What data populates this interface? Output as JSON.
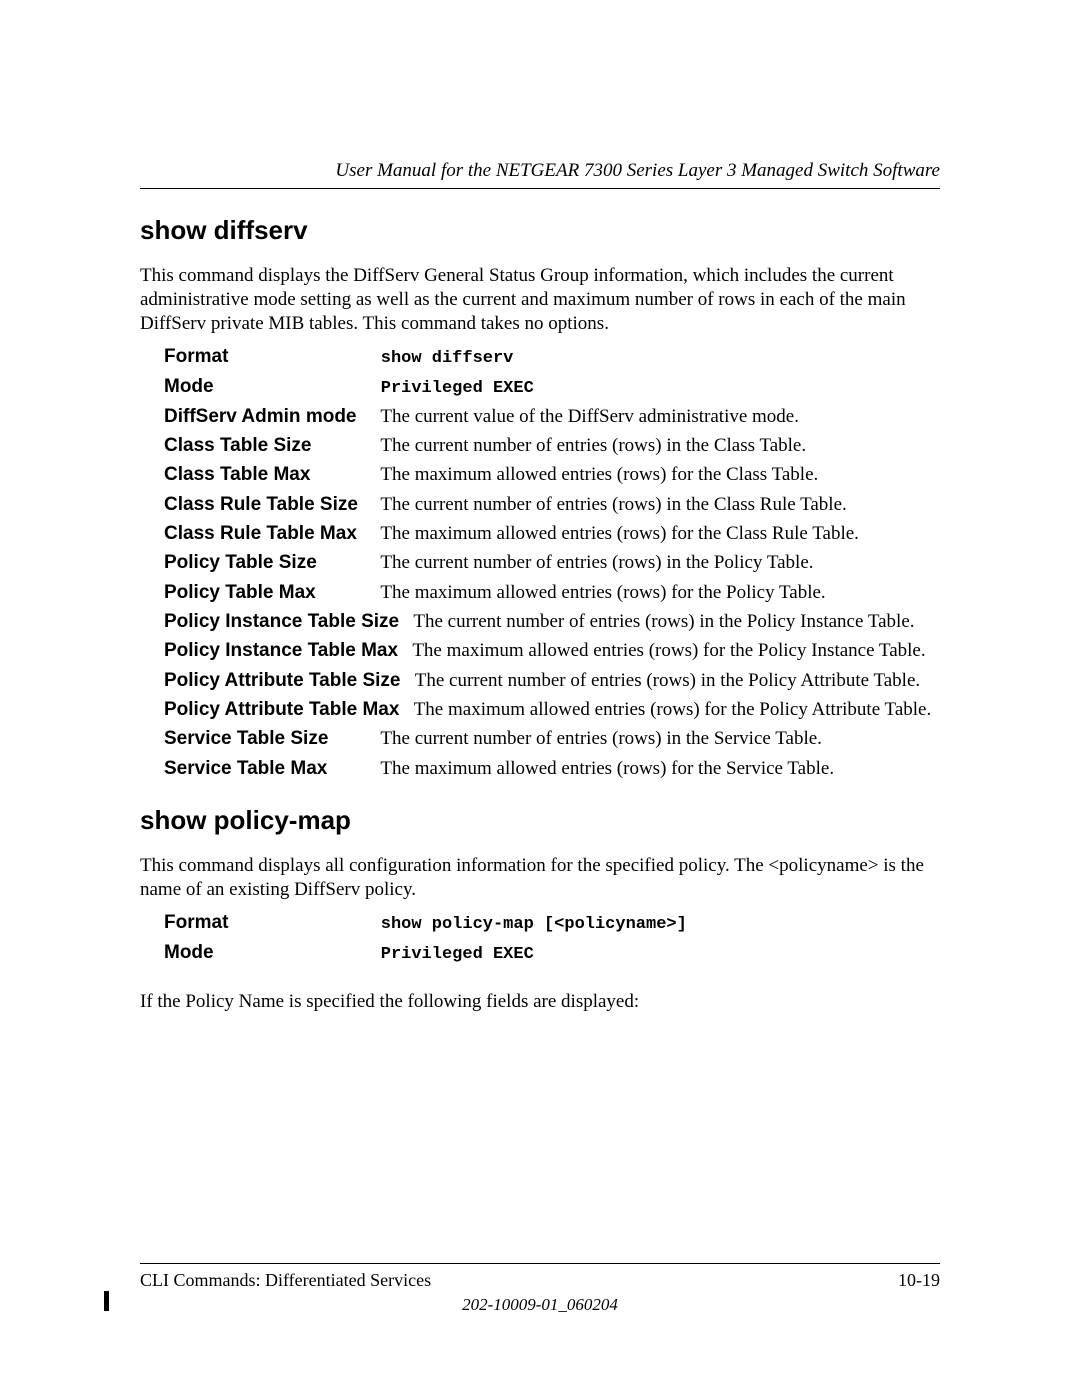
{
  "header": {
    "running_title": "User Manual for the NETGEAR 7300 Series Layer 3 Managed Switch Software"
  },
  "sections": {
    "show_diffserv": {
      "heading": "show diffserv",
      "intro": "This command displays the DiffServ General Status Group information, which includes the current administrative mode setting as well as the current and maximum number of rows in each of the main DiffServ private MIB tables. This command takes no options.",
      "rows": {
        "format_label": "Format",
        "format_value": "show diffserv",
        "mode_label": "Mode",
        "mode_value": "Privileged EXEC",
        "admin_label": "DiffServ Admin mode",
        "admin_desc": "The current value of the DiffServ administrative mode.",
        "class_size_label": "Class Table Size",
        "class_size_desc": "The current number of entries (rows) in the Class Table.",
        "class_max_label": "Class Table Max",
        "class_max_desc": "The maximum allowed entries (rows) for the Class Table.",
        "crule_size_label": "Class Rule Table Size",
        "crule_size_desc": "The current number of entries (rows) in the Class Rule Table.",
        "crule_max_label": "Class Rule Table Max",
        "crule_max_desc": "The maximum allowed entries (rows) for the Class Rule Table.",
        "policy_size_label": "Policy Table Size",
        "policy_size_desc": "The current number of entries (rows) in the Policy Table.",
        "policy_max_label": "Policy Table Max",
        "policy_max_desc": "The maximum allowed entries (rows) for the Policy Table.",
        "pinst_size_label": "Policy Instance Table Size",
        "pinst_size_desc": "The current number of entries (rows) in the Policy Instance Table.",
        "pinst_max_label": "Policy Instance Table Max",
        "pinst_max_desc": "The maximum allowed entries (rows) for the Policy Instance Table.",
        "pattr_size_label": "Policy Attribute Table Size",
        "pattr_size_desc": "The current number of entries (rows) in the Policy Attribute Table.",
        "pattr_max_label": "Policy Attribute Table Max",
        "pattr_max_desc": "The maximum allowed entries (rows) for the Policy Attribute Table.",
        "svc_size_label": "Service Table Size",
        "svc_size_desc": "The current number of entries (rows) in the Service Table.",
        "svc_max_label": "Service Table Max",
        "svc_max_desc": "The maximum allowed entries (rows) for the Service Table."
      }
    },
    "show_policy_map": {
      "heading": "show policy-map",
      "intro": "This command displays all configuration information for the specified policy. The <policyname> is the name of an existing DiffServ policy.",
      "rows": {
        "format_label": "Format",
        "format_value": "show policy-map [<policyname>]",
        "mode_label": "Mode",
        "mode_value": "Privileged EXEC"
      },
      "trailing": "If the Policy Name is specified the following fields are displayed:"
    }
  },
  "footer": {
    "left": "CLI Commands: Differentiated Services",
    "right": "10-19",
    "docnum": "202-10009-01_060204"
  }
}
